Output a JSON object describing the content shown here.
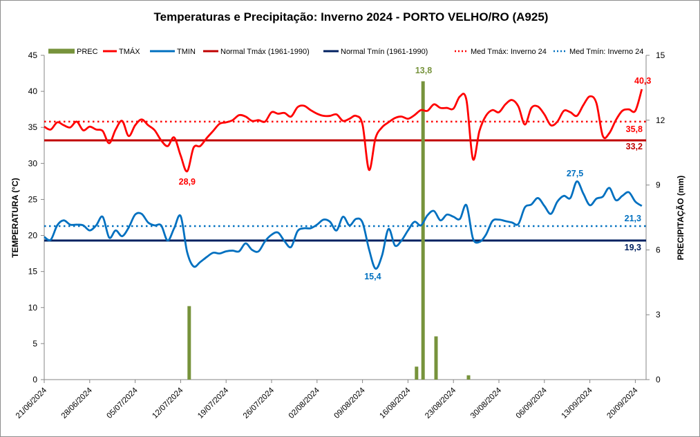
{
  "chart_data": {
    "type": "line",
    "title": "Temperaturas  e Precipitação: Inverno 2024 - PORTO VELHO/RO  (A925)",
    "ylabel": "TEMPERATURA  (°C)",
    "y2label": "PRECIPITAÇÃO (mm)",
    "ylim": [
      0,
      45
    ],
    "yticks": [
      "0",
      "5",
      "10",
      "15",
      "20",
      "25",
      "30",
      "35",
      "40",
      "45"
    ],
    "y2lim": [
      0,
      15
    ],
    "y2ticks": [
      "0",
      "3",
      "6",
      "9",
      "12",
      "15"
    ],
    "start_date": "21/06/2024",
    "xtick_labels": [
      "21/06/2024",
      "28/06/2024",
      "05/07/2024",
      "12/07/2024",
      "19/07/2024",
      "26/07/2024",
      "02/08/2024",
      "09/08/2024",
      "16/08/2024",
      "23/08/2024",
      "30/08/2024",
      "06/09/2024",
      "13/09/2024",
      "20/09/2024"
    ],
    "legend": {
      "placement": "top",
      "items": [
        "PREC",
        "TMÁX",
        "TMIN",
        "Normal Tmáx (1961-1990)",
        "Normal Tmín (1961-1990)",
        "Med Tmáx: Inverno 24",
        "Med Tmín: Inverno 24"
      ]
    },
    "colors": {
      "prec": "#77933C",
      "tmax": "#FF0000",
      "tmin": "#0070C0",
      "normal_tmax": "#C00000",
      "normal_tmin": "#002060",
      "med_tmax": "#FF0000",
      "med_tmin": "#0070C0"
    },
    "series": [
      {
        "name": "TMÁX",
        "values": [
          35.1,
          34.7,
          35.7,
          35.3,
          35.0,
          35.8,
          34.6,
          35.1,
          34.7,
          34.5,
          32.8,
          34.7,
          35.9,
          33.8,
          35.3,
          36.1,
          35.3,
          34.6,
          33.2,
          32.4,
          33.6,
          31.1,
          28.9,
          32.2,
          32.4,
          33.5,
          34.5,
          35.5,
          35.7,
          36.0,
          36.7,
          36.5,
          35.9,
          36.0,
          35.8,
          37.1,
          36.9,
          37.0,
          36.5,
          37.8,
          38.0,
          37.4,
          36.9,
          36.6,
          36.6,
          36.8,
          35.9,
          36.2,
          36.6,
          35.4,
          29.1,
          33.5,
          35.0,
          35.7,
          36.3,
          36.5,
          36.2,
          36.7,
          37.4,
          37.3,
          38.2,
          37.7,
          37.7,
          37.6,
          39.3,
          38.8,
          30.6,
          34.5,
          36.6,
          37.4,
          37.1,
          38.2,
          38.8,
          37.9,
          35.4,
          37.7,
          37.9,
          36.8,
          35.3,
          35.8,
          37.3,
          37.1,
          36.6,
          38.1,
          39.3,
          38.4,
          33.8,
          34.2,
          36.0,
          37.3,
          37.5,
          37.3,
          40.3
        ]
      },
      {
        "name": "TMIN",
        "values": [
          19.8,
          19.4,
          21.4,
          22.1,
          21.5,
          21.5,
          21.4,
          20.7,
          21.4,
          22.6,
          19.7,
          20.7,
          19.9,
          21.1,
          22.9,
          23.0,
          21.8,
          21.4,
          21.4,
          19.3,
          21.0,
          22.7,
          17.7,
          15.7,
          16.3,
          17.0,
          17.6,
          17.5,
          17.8,
          17.9,
          17.8,
          18.9,
          18.0,
          17.8,
          19.2,
          20.1,
          20.4,
          19.2,
          18.4,
          20.6,
          21.0,
          21.0,
          21.5,
          22.2,
          21.9,
          20.7,
          22.6,
          21.4,
          22.3,
          21.8,
          18.1,
          15.4,
          17.2,
          20.9,
          18.6,
          19.3,
          20.7,
          21.9,
          21.4,
          22.8,
          23.4,
          22.1,
          22.9,
          22.6,
          22.3,
          24.2,
          19.6,
          19.1,
          20.1,
          22.0,
          22.2,
          22.0,
          21.8,
          21.6,
          23.9,
          24.3,
          25.2,
          24.1,
          23.0,
          24.7,
          25.5,
          25.2,
          27.5,
          25.8,
          24.2,
          25.1,
          25.4,
          26.6,
          24.9,
          25.5,
          26.0,
          24.7,
          24.1
        ]
      },
      {
        "name": "PREC",
        "axis": "right",
        "points": [
          {
            "day": 22,
            "value": 3.4
          },
          {
            "day": 57,
            "value": 0.6
          },
          {
            "day": 58,
            "value": 13.8
          },
          {
            "day": 60,
            "value": 2.0
          },
          {
            "day": 65,
            "value": 0.2
          }
        ]
      },
      {
        "name": "Normal Tmáx (1961-1990)",
        "constant": 33.2
      },
      {
        "name": "Normal Tmín (1961-1990)",
        "constant": 19.3
      },
      {
        "name": "Med Tmáx: Inverno 24",
        "constant": 35.8
      },
      {
        "name": "Med Tmín: Inverno 24",
        "constant": 21.3
      }
    ],
    "annotations": {
      "tmax_min": "28,9",
      "tmax_max": "40,3",
      "tmin_min": "15,4",
      "tmin_max": "27,5",
      "prec_max": "13,8",
      "med_tmax": "35,8",
      "normal_tmax": "33,2",
      "med_tmin": "21,3",
      "normal_tmin": "19,3"
    },
    "grid": false
  }
}
